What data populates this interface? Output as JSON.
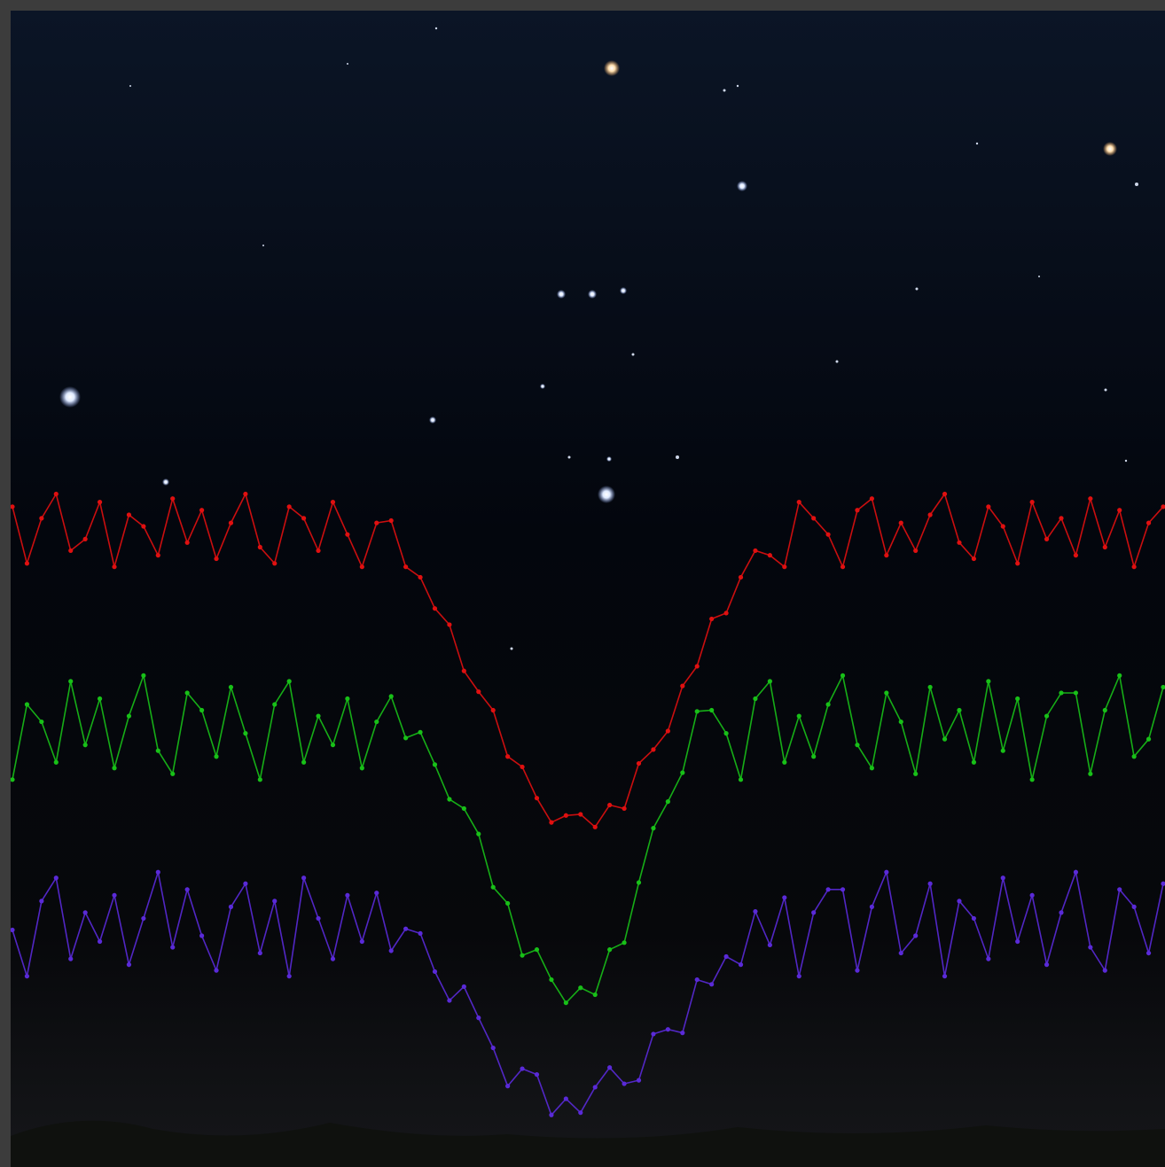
{
  "chart_data": {
    "type": "line",
    "ylim": [
      0,
      100
    ],
    "markers": true,
    "series": [
      {
        "color": "#e01010",
        "values": [
          57.1,
          52.2,
          56.1,
          58.2,
          53.3,
          54.3,
          57.5,
          51.9,
          56.4,
          55.4,
          52.9,
          57.8,
          54.0,
          56.8,
          52.6,
          55.7,
          58.2,
          53.6,
          52.2,
          57.1,
          56.1,
          53.3,
          57.5,
          54.7,
          51.9,
          55.7,
          55.9,
          51.9,
          51.0,
          48.3,
          46.9,
          42.9,
          41.1,
          39.5,
          35.5,
          34.6,
          31.9,
          29.8,
          30.4,
          30.5,
          29.4,
          31.3,
          31.0,
          34.9,
          36.1,
          37.7,
          41.6,
          43.3,
          47.4,
          47.9,
          51.0,
          53.3,
          52.9,
          51.9,
          57.5,
          56.1,
          54.7,
          51.9,
          56.8,
          57.8,
          52.9,
          55.7,
          53.3,
          56.4,
          58.2,
          54.0,
          52.6,
          57.1,
          55.4,
          52.2,
          57.5,
          54.3,
          56.1,
          52.9,
          57.8,
          53.6,
          56.8,
          51.9,
          55.7,
          57.1
        ]
      },
      {
        "color": "#18c018",
        "values": [
          33.5,
          40.0,
          38.5,
          35.0,
          42.0,
          36.5,
          40.5,
          34.5,
          39.0,
          42.5,
          36.0,
          34.0,
          41.0,
          39.5,
          35.5,
          41.5,
          37.5,
          33.5,
          40.0,
          42.0,
          35.0,
          39.0,
          36.5,
          40.5,
          34.5,
          38.5,
          40.7,
          37.1,
          37.6,
          34.8,
          31.8,
          31.0,
          28.8,
          24.2,
          22.8,
          18.3,
          18.8,
          16.2,
          14.2,
          15.5,
          14.9,
          18.8,
          19.4,
          24.6,
          29.3,
          31.6,
          34.1,
          39.4,
          39.5,
          37.5,
          33.5,
          40.5,
          42.0,
          35.0,
          39.0,
          35.5,
          40.0,
          42.5,
          36.5,
          34.5,
          41.0,
          38.5,
          34.0,
          41.5,
          37.0,
          39.5,
          35.0,
          42.0,
          36.0,
          40.5,
          33.5,
          39.0,
          41.0,
          41.0,
          34.0,
          39.5,
          42.5,
          35.5,
          37.0,
          41.5
        ]
      },
      {
        "color": "#5a2ad8",
        "values": [
          20.5,
          16.5,
          23.0,
          25.0,
          18.0,
          22.0,
          19.5,
          23.5,
          17.5,
          21.5,
          25.5,
          19.0,
          24.0,
          20.0,
          17.0,
          22.5,
          24.5,
          18.5,
          23.0,
          16.5,
          25.0,
          21.5,
          18.0,
          23.5,
          19.5,
          23.7,
          18.7,
          20.6,
          20.2,
          16.9,
          14.4,
          15.6,
          12.9,
          10.3,
          7.0,
          8.5,
          8.0,
          4.5,
          5.9,
          4.7,
          6.9,
          8.6,
          7.2,
          7.5,
          11.5,
          11.9,
          11.6,
          16.2,
          15.8,
          18.2,
          17.5,
          22.1,
          19.2,
          23.3,
          16.5,
          22.0,
          24.0,
          24.0,
          17.0,
          22.5,
          25.5,
          18.5,
          20.0,
          24.5,
          16.5,
          23.0,
          21.5,
          18.0,
          25.0,
          19.5,
          23.5,
          17.5,
          22.0,
          25.5,
          19.0,
          17.0,
          24.0,
          22.5,
          18.5,
          24.5
        ]
      }
    ]
  }
}
